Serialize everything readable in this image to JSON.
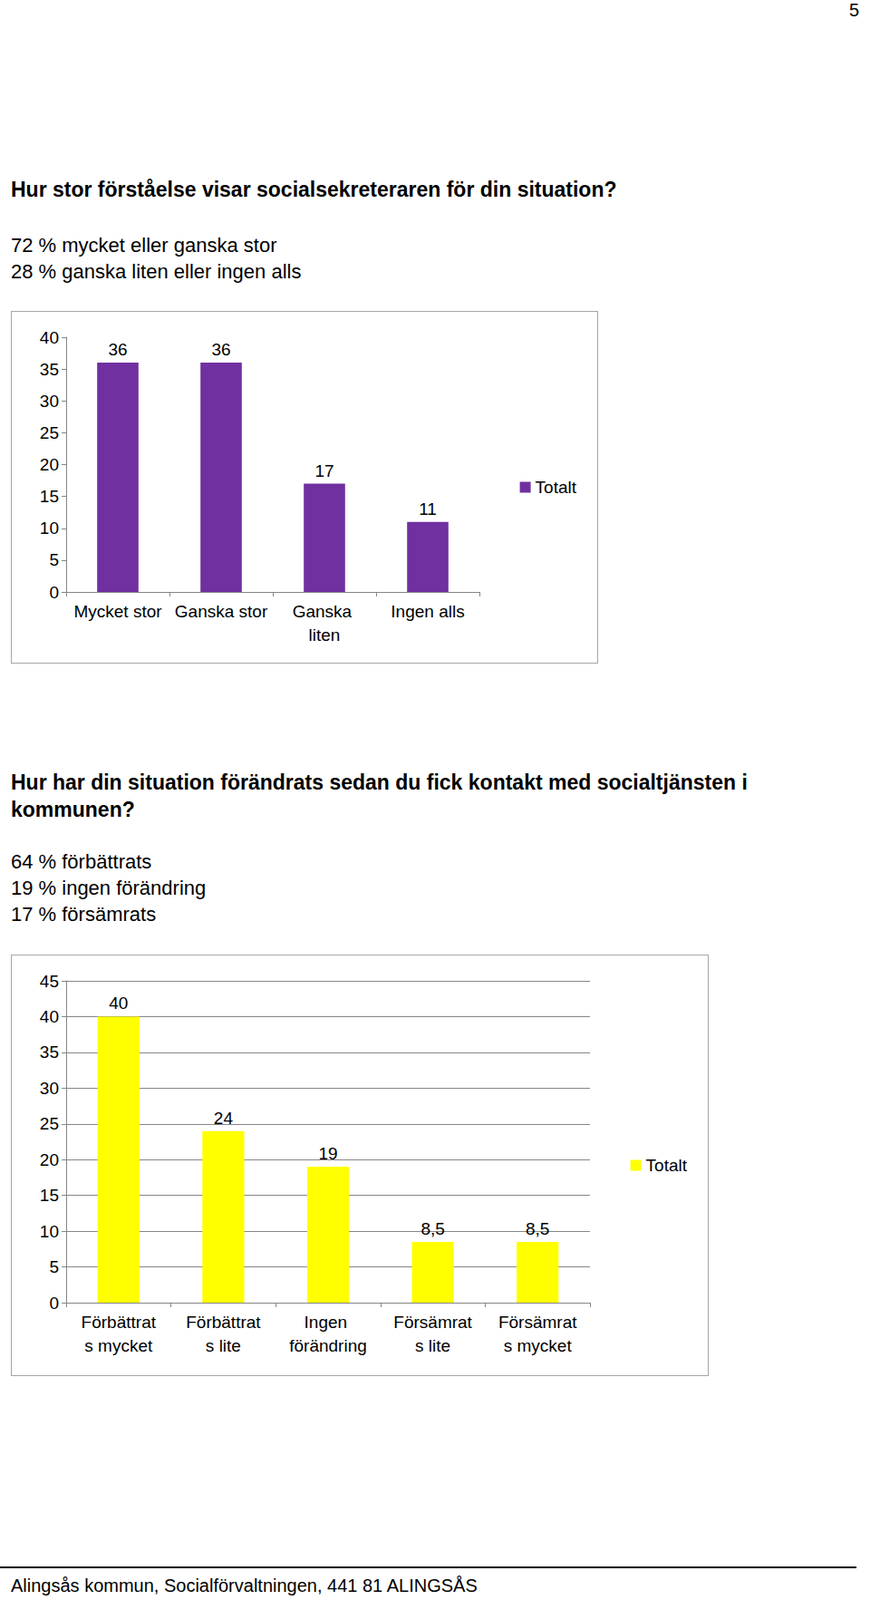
{
  "page": "5",
  "chart_data": [
    {
      "type": "bar",
      "title": "Hur stor förståelse visar socialsekreteraren för din situation?",
      "subtitle": [
        "72 % mycket eller ganska stor",
        "28 % ganska liten eller ingen alls"
      ],
      "categories": [
        "Mycket stor",
        "Ganska stor",
        "Ganska liten",
        "Ingen alls"
      ],
      "series": [
        {
          "name": "Totalt",
          "color": "#7030a0",
          "values": [
            36,
            36,
            17,
            11
          ]
        }
      ],
      "ylim": [
        0,
        40
      ],
      "yticks": [
        0,
        5,
        10,
        15,
        20,
        25,
        30,
        35,
        40
      ],
      "grid": false,
      "legend": "right",
      "data_labels": true
    },
    {
      "type": "bar",
      "title": "Hur har din situation förändrats sedan du fick kontakt med socialtjänsten i kommunen?",
      "subtitle": [
        "64 % förbättrats",
        "19 % ingen förändring",
        "17 % försämrats"
      ],
      "categories": [
        "Förbättrats mycket",
        "Förbättrats lite",
        "Ingen förändring",
        "Försämrats lite",
        "Försämrats mycket"
      ],
      "series": [
        {
          "name": "Totalt",
          "color": "#ffff00",
          "values": [
            40,
            24,
            19,
            8.5,
            8.5
          ],
          "value_labels": [
            "40",
            "24",
            "19",
            "8,5",
            "8,5"
          ]
        }
      ],
      "ylim": [
        0,
        45
      ],
      "yticks": [
        0,
        5,
        10,
        15,
        20,
        25,
        30,
        35,
        40,
        45
      ],
      "grid": true,
      "legend": "right",
      "data_labels": true
    }
  ],
  "footer": "Alingsås kommun, Socialförvaltningen, 441 81  ALINGSÅS"
}
